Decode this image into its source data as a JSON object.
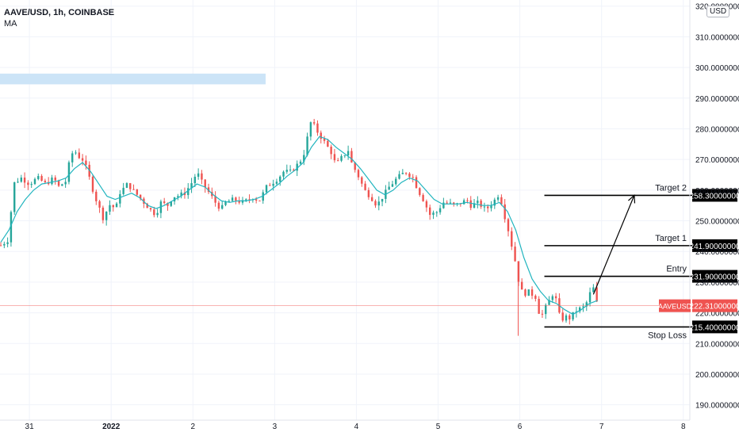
{
  "header": {
    "symbol_title": "AAVE/USD, 1h, COINBASE",
    "indicator": "MA",
    "currency": "USD"
  },
  "chart_data": {
    "type": "candlestick",
    "symbol": "AAVEUSD",
    "last_price_label": "222.31000000",
    "last_price": 222.31,
    "y_range": [
      185,
      322
    ],
    "y_ticks": [
      190,
      200,
      210,
      220,
      230,
      240,
      250,
      260,
      270,
      280,
      290,
      300,
      310,
      320
    ],
    "y_tick_labels": [
      "190.00000000",
      "200.00000000",
      "210.00000000",
      "220.00000000",
      "230.00000000",
      "240.00000000",
      "250.00000000",
      "260.00000000",
      "270.00000000",
      "280.00000000",
      "290.00000000",
      "300.00000000",
      "310.00000000",
      "320.00000000"
    ],
    "x_range": [
      -0.36,
      8.08
    ],
    "x_ticks": [
      {
        "x": 0,
        "label": "31"
      },
      {
        "x": 1,
        "label": "2022"
      },
      {
        "x": 2,
        "label": "2"
      },
      {
        "x": 3,
        "label": "3"
      },
      {
        "x": 4,
        "label": "4"
      },
      {
        "x": 5,
        "label": "5"
      },
      {
        "x": 6,
        "label": "6"
      },
      {
        "x": 7,
        "label": "7"
      },
      {
        "x": 8,
        "label": "8"
      }
    ],
    "close_path": [
      [
        -0.35,
        242
      ],
      [
        -0.25,
        244
      ],
      [
        -0.2,
        262
      ],
      [
        -0.1,
        264
      ],
      [
        0.0,
        262
      ],
      [
        0.1,
        264
      ],
      [
        0.2,
        262
      ],
      [
        0.3,
        264
      ],
      [
        0.35,
        261
      ],
      [
        0.45,
        263
      ],
      [
        0.5,
        271
      ],
      [
        0.55,
        273
      ],
      [
        0.6,
        271
      ],
      [
        0.65,
        270
      ],
      [
        0.7,
        267
      ],
      [
        0.8,
        258
      ],
      [
        0.9,
        251
      ],
      [
        1.0,
        256
      ],
      [
        1.05,
        253
      ],
      [
        1.1,
        259
      ],
      [
        1.2,
        262
      ],
      [
        1.3,
        259
      ],
      [
        1.4,
        256
      ],
      [
        1.5,
        253
      ],
      [
        1.55,
        252
      ],
      [
        1.6,
        256
      ],
      [
        1.7,
        255
      ],
      [
        1.75,
        258
      ],
      [
        1.8,
        258
      ],
      [
        1.9,
        259
      ],
      [
        2.0,
        263
      ],
      [
        2.05,
        266
      ],
      [
        2.1,
        263
      ],
      [
        2.2,
        259
      ],
      [
        2.3,
        255
      ],
      [
        2.35,
        254
      ],
      [
        2.4,
        256
      ],
      [
        2.5,
        257
      ],
      [
        2.6,
        256
      ],
      [
        2.7,
        257
      ],
      [
        2.75,
        258
      ],
      [
        2.8,
        256
      ],
      [
        2.9,
        261
      ],
      [
        3.0,
        263
      ],
      [
        3.05,
        264
      ],
      [
        3.1,
        266
      ],
      [
        3.2,
        266
      ],
      [
        3.3,
        269
      ],
      [
        3.35,
        271
      ],
      [
        3.4,
        277
      ],
      [
        3.45,
        283
      ],
      [
        3.5,
        280
      ],
      [
        3.55,
        278
      ],
      [
        3.6,
        276
      ],
      [
        3.7,
        272
      ],
      [
        3.75,
        268
      ],
      [
        3.8,
        270
      ],
      [
        3.9,
        273
      ],
      [
        3.95,
        268
      ],
      [
        4.0,
        266
      ],
      [
        4.05,
        263
      ],
      [
        4.1,
        260
      ],
      [
        4.2,
        257
      ],
      [
        4.25,
        255
      ],
      [
        4.3,
        257
      ],
      [
        4.4,
        261
      ],
      [
        4.5,
        264
      ],
      [
        4.6,
        266
      ],
      [
        4.7,
        264
      ],
      [
        4.75,
        260
      ],
      [
        4.8,
        258
      ],
      [
        4.85,
        255
      ],
      [
        4.9,
        252
      ],
      [
        5.0,
        253
      ],
      [
        5.05,
        256
      ],
      [
        5.1,
        256
      ],
      [
        5.2,
        255
      ],
      [
        5.3,
        256
      ],
      [
        5.35,
        257
      ],
      [
        5.4,
        255
      ],
      [
        5.5,
        256
      ],
      [
        5.55,
        254
      ],
      [
        5.6,
        254
      ],
      [
        5.7,
        257
      ],
      [
        5.75,
        259
      ],
      [
        5.8,
        253
      ],
      [
        5.85,
        248
      ],
      [
        5.9,
        242
      ],
      [
        5.95,
        236
      ],
      [
        6.0,
        228
      ],
      [
        6.05,
        226
      ],
      [
        6.1,
        227
      ],
      [
        6.2,
        225
      ],
      [
        6.25,
        218
      ],
      [
        6.3,
        221
      ],
      [
        6.4,
        226
      ],
      [
        6.45,
        224
      ],
      [
        6.5,
        217
      ],
      [
        6.55,
        219
      ],
      [
        6.6,
        218
      ],
      [
        6.7,
        221
      ],
      [
        6.8,
        222
      ],
      [
        6.85,
        226
      ],
      [
        6.9,
        228
      ],
      [
        6.95,
        222.31
      ]
    ],
    "ma_path": [
      [
        -0.35,
        243
      ],
      [
        -0.25,
        247
      ],
      [
        -0.15,
        253
      ],
      [
        -0.05,
        257
      ],
      [
        0.05,
        260
      ],
      [
        0.15,
        262
      ],
      [
        0.25,
        262.5
      ],
      [
        0.35,
        263
      ],
      [
        0.45,
        264
      ],
      [
        0.55,
        267
      ],
      [
        0.65,
        269
      ],
      [
        0.75,
        266
      ],
      [
        0.85,
        262
      ],
      [
        0.95,
        258
      ],
      [
        1.05,
        257
      ],
      [
        1.15,
        258
      ],
      [
        1.25,
        259
      ],
      [
        1.35,
        257.5
      ],
      [
        1.45,
        255
      ],
      [
        1.55,
        254
      ],
      [
        1.65,
        255
      ],
      [
        1.75,
        256.5
      ],
      [
        1.85,
        258
      ],
      [
        1.95,
        260
      ],
      [
        2.05,
        262
      ],
      [
        2.15,
        261
      ],
      [
        2.25,
        258.5
      ],
      [
        2.35,
        256.5
      ],
      [
        2.45,
        256
      ],
      [
        2.55,
        256.5
      ],
      [
        2.65,
        256.5
      ],
      [
        2.75,
        257
      ],
      [
        2.85,
        258
      ],
      [
        2.95,
        260
      ],
      [
        3.05,
        262
      ],
      [
        3.15,
        264.5
      ],
      [
        3.25,
        266.5
      ],
      [
        3.35,
        269
      ],
      [
        3.45,
        274
      ],
      [
        3.55,
        277.5
      ],
      [
        3.65,
        276.5
      ],
      [
        3.75,
        274
      ],
      [
        3.85,
        272
      ],
      [
        3.95,
        270
      ],
      [
        4.05,
        267
      ],
      [
        4.15,
        263.5
      ],
      [
        4.25,
        260
      ],
      [
        4.35,
        258.5
      ],
      [
        4.45,
        260
      ],
      [
        4.55,
        262.5
      ],
      [
        4.65,
        264
      ],
      [
        4.75,
        263
      ],
      [
        4.85,
        260
      ],
      [
        4.95,
        257
      ],
      [
        5.05,
        255.5
      ],
      [
        5.15,
        255.5
      ],
      [
        5.25,
        255.5
      ],
      [
        5.35,
        256
      ],
      [
        5.45,
        255.5
      ],
      [
        5.55,
        255
      ],
      [
        5.65,
        255
      ],
      [
        5.75,
        256
      ],
      [
        5.85,
        253
      ],
      [
        5.95,
        247
      ],
      [
        6.05,
        238
      ],
      [
        6.15,
        231
      ],
      [
        6.25,
        227
      ],
      [
        6.35,
        224
      ],
      [
        6.45,
        223
      ],
      [
        6.55,
        221
      ],
      [
        6.65,
        219.5
      ],
      [
        6.75,
        221
      ],
      [
        6.85,
        223
      ],
      [
        6.95,
        224
      ]
    ],
    "levels": [
      {
        "name": "Target 2",
        "value": 258.3,
        "label": "258.30000000"
      },
      {
        "name": "Target 1",
        "value": 241.9,
        "label": "241.90000000"
      },
      {
        "name": "Entry",
        "value": 231.9,
        "label": "231.90000000"
      },
      {
        "name": "Stop Loss",
        "value": 215.4,
        "label": "215.40000000"
      }
    ],
    "level_x_range": [
      6.3,
      8.36
    ],
    "arrow": {
      "from": [
        6.9,
        226
      ],
      "to": [
        7.4,
        258.3
      ]
    },
    "highlight_band": {
      "x_range": [
        -0.36,
        2.89
      ],
      "y_range": [
        294.5,
        298
      ]
    }
  },
  "colors": {
    "up": "#26a69a",
    "down": "#ef5350",
    "ma": "#22b5bf",
    "grid": "#f0f3fa",
    "text": "#131722",
    "price_line": "#ef5350",
    "level": "#000000",
    "band": "#cce4f7"
  }
}
